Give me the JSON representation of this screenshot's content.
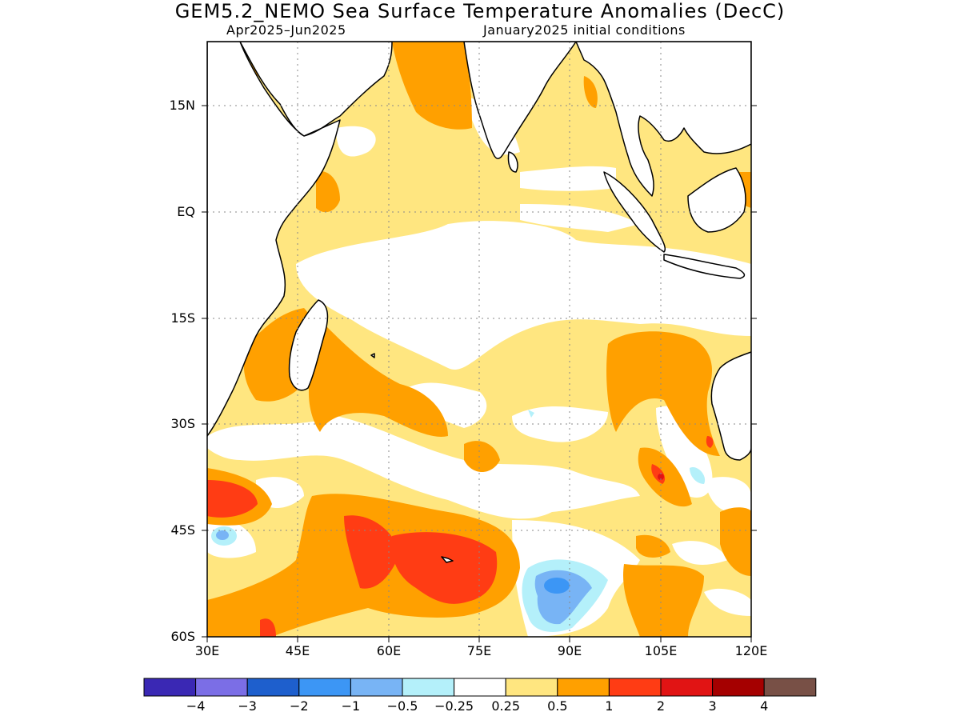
{
  "title": "GEM5.2_NEMO Sea Surface Temperature Anomalies (DecC)",
  "subtitle_left": "Apr2025–Jun2025",
  "subtitle_right": "January2025 initial conditions",
  "lat_labels": [
    "15N",
    "EQ",
    "15S",
    "30S",
    "45S",
    "60S"
  ],
  "lon_labels": [
    "30E",
    "45E",
    "60E",
    "75E",
    "90E",
    "105E",
    "120E"
  ],
  "map_extent": {
    "lon": [
      30,
      120
    ],
    "lat": [
      -60,
      24
    ]
  },
  "colorbar": {
    "colors": [
      "#3a28b4",
      "#7b6ee6",
      "#1e5fcd",
      "#3c96f5",
      "#78b4f5",
      "#b4f0fa",
      "#ffffff",
      "#ffe680",
      "#ffa000",
      "#ff3c14",
      "#e11414",
      "#a50000",
      "#785046"
    ],
    "labels": [
      "−4",
      "−3",
      "−2",
      "−1",
      "−0.5",
      "−0.25",
      "0.25",
      "0.5",
      "1",
      "2",
      "3",
      "4"
    ]
  },
  "colors": {
    "positive_low": "#ffe680",
    "positive_mid": "#ffa000",
    "positive_high": "#ff3c14",
    "negative_low": "#b4f0fa",
    "negative_mid": "#78b4f5",
    "negative_high": "#3c96f5"
  }
}
